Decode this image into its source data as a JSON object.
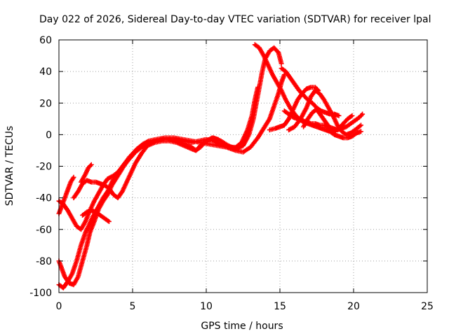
{
  "chart_data": {
    "type": "scatter",
    "title": "Day 022 of 2026, Sidereal Day-to-day VTEC variation (SDTVAR) for receiver lpal",
    "xlabel": "GPS time / hours",
    "ylabel": "SDTVAR / TECUs",
    "xlim": [
      0,
      25
    ],
    "ylim": [
      -100,
      60
    ],
    "xticks": [
      0,
      5,
      10,
      15,
      20,
      25
    ],
    "yticks": [
      -100,
      -80,
      -60,
      -40,
      -20,
      0,
      20,
      40,
      60
    ],
    "xtick_labels": [
      "0",
      "5",
      "10",
      "15",
      "20",
      "25"
    ],
    "ytick_labels": [
      "-100",
      "-80",
      "-60",
      "-40",
      "-20",
      "0",
      "20",
      "40",
      "60"
    ],
    "grid": true,
    "marker": "+",
    "color": "#ff0000",
    "series": [
      {
        "points": [
          [
            0.0,
            -95
          ],
          [
            0.3,
            -97
          ],
          [
            0.6,
            -93
          ],
          [
            0.9,
            -88
          ],
          [
            1.2,
            -80
          ],
          [
            1.5,
            -70
          ],
          [
            1.8,
            -62
          ],
          [
            2.0,
            -58
          ],
          [
            2.3,
            -52
          ],
          [
            2.6,
            -47
          ],
          [
            3.0,
            -40
          ],
          [
            3.3,
            -36
          ],
          [
            3.6,
            -30
          ],
          [
            4.0,
            -24
          ],
          [
            4.4,
            -19
          ],
          [
            4.8,
            -14
          ],
          [
            5.2,
            -10
          ],
          [
            5.6,
            -7
          ],
          [
            6.0,
            -5
          ],
          [
            6.5,
            -4
          ],
          [
            7.0,
            -3
          ],
          [
            7.5,
            -3
          ],
          [
            8.0,
            -3
          ],
          [
            8.5,
            -4
          ],
          [
            9.0,
            -5
          ],
          [
            9.5,
            -4
          ],
          [
            10.0,
            -3
          ],
          [
            10.5,
            -4
          ],
          [
            11.0,
            -6
          ],
          [
            11.5,
            -8
          ],
          [
            12.0,
            -8
          ],
          [
            12.4,
            -5
          ],
          [
            12.8,
            3
          ],
          [
            13.1,
            12
          ],
          [
            13.3,
            22
          ],
          [
            13.5,
            30
          ]
        ]
      },
      {
        "points": [
          [
            0.0,
            -80
          ],
          [
            0.2,
            -85
          ],
          [
            0.4,
            -90
          ],
          [
            0.7,
            -94
          ],
          [
            1.0,
            -95
          ],
          [
            1.3,
            -90
          ],
          [
            1.6,
            -80
          ],
          [
            1.9,
            -70
          ],
          [
            2.1,
            -62
          ],
          [
            2.4,
            -55
          ],
          [
            2.7,
            -47
          ],
          [
            3.0,
            -42
          ],
          [
            3.3,
            -38
          ],
          [
            3.6,
            -32
          ],
          [
            4.0,
            -26
          ],
          [
            4.4,
            -20
          ],
          [
            4.8,
            -15
          ],
          [
            5.2,
            -11
          ],
          [
            5.6,
            -8
          ],
          [
            6.0,
            -6
          ],
          [
            6.5,
            -4
          ],
          [
            7.0,
            -3
          ],
          [
            7.5,
            -3
          ],
          [
            8.0,
            -4
          ],
          [
            8.5,
            -6
          ],
          [
            9.0,
            -8
          ],
          [
            9.3,
            -10
          ],
          [
            9.6,
            -7
          ],
          [
            10.0,
            -4
          ],
          [
            10.5,
            -2
          ],
          [
            11.0,
            -4
          ],
          [
            11.5,
            -7
          ],
          [
            12.0,
            -9
          ],
          [
            12.5,
            -7
          ],
          [
            12.9,
            0
          ],
          [
            13.2,
            10
          ],
          [
            13.4,
            20
          ],
          [
            13.6,
            30
          ],
          [
            13.8,
            40
          ],
          [
            14.0,
            48
          ],
          [
            14.3,
            53
          ],
          [
            14.6,
            55
          ],
          [
            14.9,
            52
          ],
          [
            15.1,
            45
          ]
        ]
      },
      {
        "points": [
          [
            0.0,
            -50
          ],
          [
            0.2,
            -45
          ],
          [
            0.4,
            -40
          ],
          [
            0.6,
            -35
          ],
          [
            0.8,
            -30
          ],
          [
            1.0,
            -27
          ]
        ]
      },
      {
        "points": [
          [
            0.0,
            -42
          ],
          [
            0.3,
            -44
          ],
          [
            0.6,
            -48
          ],
          [
            0.9,
            -53
          ],
          [
            1.2,
            -58
          ],
          [
            1.5,
            -60
          ],
          [
            1.8,
            -55
          ],
          [
            2.1,
            -48
          ],
          [
            2.4,
            -42
          ],
          [
            2.7,
            -37
          ],
          [
            3.0,
            -32
          ],
          [
            3.3,
            -28
          ],
          [
            3.7,
            -26
          ],
          [
            4.1,
            -23
          ],
          [
            4.5,
            -18
          ],
          [
            4.9,
            -14
          ],
          [
            5.3,
            -9
          ],
          [
            5.7,
            -6
          ],
          [
            6.1,
            -4
          ],
          [
            6.6,
            -3
          ],
          [
            7.2,
            -2
          ],
          [
            7.8,
            -2
          ],
          [
            8.4,
            -3
          ],
          [
            9.0,
            -4
          ],
          [
            9.6,
            -5
          ],
          [
            10.2,
            -6
          ],
          [
            10.8,
            -7
          ],
          [
            11.4,
            -8
          ],
          [
            12.0,
            -10
          ],
          [
            12.5,
            -11
          ],
          [
            13.0,
            -8
          ],
          [
            13.5,
            -2
          ],
          [
            13.9,
            4
          ],
          [
            14.3,
            10
          ],
          [
            14.6,
            18
          ],
          [
            14.9,
            26
          ],
          [
            15.1,
            33
          ],
          [
            15.3,
            38
          ]
        ]
      },
      {
        "points": [
          [
            1.5,
            -30
          ],
          [
            1.8,
            -25
          ],
          [
            2.0,
            -21
          ],
          [
            2.2,
            -19
          ]
        ]
      },
      {
        "points": [
          [
            1.0,
            -40
          ],
          [
            1.3,
            -36
          ],
          [
            1.6,
            -31
          ],
          [
            1.9,
            -29
          ],
          [
            2.2,
            -30
          ],
          [
            2.5,
            -30
          ],
          [
            2.8,
            -31
          ],
          [
            3.1,
            -32
          ],
          [
            3.4,
            -34
          ],
          [
            3.7,
            -38
          ],
          [
            4.0,
            -40
          ],
          [
            4.3,
            -36
          ],
          [
            4.6,
            -30
          ],
          [
            4.9,
            -24
          ],
          [
            5.2,
            -18
          ],
          [
            5.6,
            -12
          ],
          [
            6.0,
            -7
          ],
          [
            6.5,
            -5
          ],
          [
            7.0,
            -4
          ],
          [
            7.5,
            -4
          ],
          [
            8.0,
            -5
          ],
          [
            8.5,
            -7
          ],
          [
            9.0,
            -9
          ],
          [
            9.3,
            -10
          ],
          [
            9.6,
            -8
          ],
          [
            10.0,
            -4
          ],
          [
            10.4,
            -2
          ],
          [
            10.8,
            -3
          ]
        ]
      },
      {
        "points": [
          [
            1.6,
            -51
          ],
          [
            1.9,
            -49
          ],
          [
            2.2,
            -48
          ],
          [
            2.5,
            -49
          ],
          [
            2.8,
            -51
          ],
          [
            3.1,
            -53
          ],
          [
            3.4,
            -55
          ]
        ]
      },
      {
        "points": [
          [
            13.3,
            57
          ],
          [
            13.6,
            55
          ],
          [
            13.9,
            50
          ],
          [
            14.2,
            44
          ],
          [
            14.5,
            38
          ],
          [
            14.8,
            33
          ],
          [
            15.1,
            28
          ],
          [
            15.4,
            22
          ],
          [
            15.7,
            17
          ],
          [
            16.0,
            13
          ],
          [
            16.3,
            10
          ],
          [
            16.6,
            8
          ],
          [
            16.9,
            7
          ],
          [
            17.2,
            6
          ],
          [
            17.5,
            5
          ],
          [
            17.8,
            4
          ],
          [
            18.1,
            3
          ],
          [
            18.4,
            2
          ],
          [
            18.7,
            0
          ],
          [
            19.0,
            -1
          ],
          [
            19.3,
            -2
          ],
          [
            19.6,
            -2
          ],
          [
            19.9,
            -1
          ],
          [
            20.2,
            1
          ],
          [
            20.5,
            2
          ]
        ]
      },
      {
        "points": [
          [
            15.1,
            42
          ],
          [
            15.4,
            40
          ],
          [
            15.7,
            36
          ],
          [
            16.0,
            32
          ],
          [
            16.3,
            28
          ],
          [
            16.6,
            25
          ],
          [
            16.9,
            22
          ],
          [
            17.2,
            20
          ],
          [
            17.5,
            17
          ],
          [
            17.8,
            15
          ],
          [
            18.1,
            14
          ],
          [
            18.4,
            13
          ],
          [
            18.7,
            13
          ],
          [
            19.0,
            12
          ]
        ]
      },
      {
        "points": [
          [
            15.3,
            15
          ],
          [
            15.6,
            13
          ],
          [
            15.9,
            11
          ],
          [
            16.2,
            10
          ],
          [
            16.5,
            9
          ],
          [
            16.8,
            8
          ],
          [
            17.1,
            7
          ],
          [
            17.4,
            7
          ],
          [
            17.7,
            6
          ],
          [
            18.0,
            6
          ],
          [
            18.3,
            5
          ],
          [
            18.6,
            4
          ],
          [
            18.9,
            3
          ],
          [
            19.2,
            4
          ],
          [
            19.5,
            5
          ],
          [
            19.8,
            7
          ],
          [
            20.1,
            9
          ],
          [
            20.4,
            11
          ],
          [
            20.6,
            13
          ]
        ]
      },
      {
        "points": [
          [
            15.6,
            3
          ],
          [
            16.0,
            5
          ],
          [
            16.4,
            10
          ],
          [
            16.8,
            17
          ],
          [
            17.1,
            24
          ],
          [
            17.4,
            28
          ],
          [
            17.7,
            26
          ],
          [
            18.0,
            22
          ],
          [
            18.3,
            17
          ],
          [
            18.6,
            12
          ],
          [
            18.9,
            6
          ],
          [
            19.2,
            2
          ],
          [
            19.5,
            0
          ],
          [
            19.8,
            1
          ],
          [
            20.1,
            3
          ],
          [
            20.5,
            6
          ]
        ]
      },
      {
        "points": [
          [
            14.3,
            3
          ],
          [
            14.7,
            4
          ],
          [
            15.0,
            5
          ],
          [
            15.3,
            6
          ],
          [
            15.6,
            10
          ],
          [
            15.9,
            16
          ],
          [
            16.2,
            22
          ],
          [
            16.5,
            26
          ],
          [
            16.8,
            29
          ],
          [
            17.1,
            30
          ],
          [
            17.4,
            30
          ],
          [
            17.6,
            28
          ]
        ]
      },
      {
        "points": [
          [
            16.6,
            5
          ],
          [
            16.9,
            10
          ],
          [
            17.2,
            14
          ],
          [
            17.5,
            16
          ],
          [
            17.8,
            12
          ],
          [
            18.1,
            8
          ],
          [
            18.4,
            4
          ],
          [
            18.7,
            2
          ],
          [
            19.0,
            4
          ],
          [
            19.3,
            7
          ],
          [
            19.6,
            10
          ],
          [
            19.9,
            12
          ]
        ]
      }
    ]
  }
}
